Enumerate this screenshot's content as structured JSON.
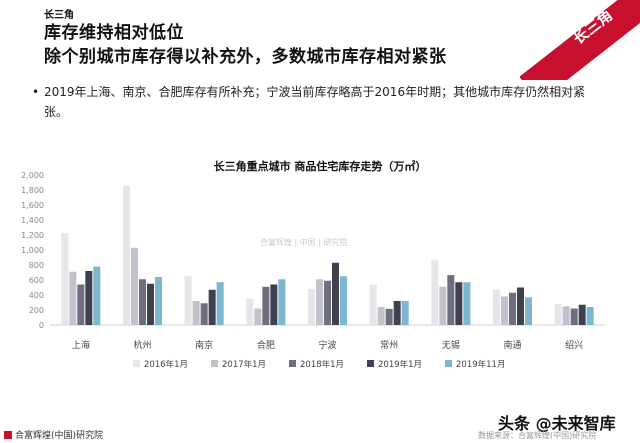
{
  "header": {
    "tag": "长三角",
    "title_line1": "库存维持相对低位",
    "title_line2": "除个别城市库存得以补充外，多数城市库存相对紧张",
    "corner_label": "长三角"
  },
  "bullet": {
    "marker": "•",
    "text": "2019年上海、南京、合肥库存有所补充；宁波当前库存略高于2016年时期；其他城市库存仍然相对紧张。"
  },
  "watermarks": {
    "center": "合富辉煌 | 中国 | 研究院",
    "brand": "头条 @未来智库"
  },
  "footer": {
    "left": "合富辉煌(中国)研究院",
    "right": "数据来源：合富辉煌(中国)研究院"
  },
  "chart_data": {
    "type": "bar",
    "title": "长三角重点城市  商品住宅库存走势（万㎡）",
    "categories": [
      "上海",
      "杭州",
      "南京",
      "合肥",
      "宁波",
      "常州",
      "无锡",
      "南通",
      "绍兴"
    ],
    "ylim": [
      0,
      2000
    ],
    "yticks": [
      "0",
      "200",
      "400",
      "600",
      "800",
      "1,000",
      "1,200",
      "1,400",
      "1,600",
      "1,800",
      "2,000"
    ],
    "grid": false,
    "legend_position": "bottom",
    "series": [
      {
        "name": "2016年1月",
        "color": "#e6e6ea",
        "values": [
          1225,
          1860,
          650,
          350,
          480,
          540,
          870,
          470,
          280
        ]
      },
      {
        "name": "2017年1月",
        "color": "#c2c2cc",
        "values": [
          710,
          1030,
          320,
          220,
          610,
          240,
          510,
          380,
          250
        ]
      },
      {
        "name": "2018年1月",
        "color": "#6e6e7e",
        "values": [
          540,
          610,
          290,
          510,
          590,
          215,
          665,
          430,
          220
        ]
      },
      {
        "name": "2019年1月",
        "color": "#3d4150",
        "values": [
          720,
          550,
          470,
          540,
          830,
          320,
          570,
          500,
          270
        ]
      },
      {
        "name": "2019年11月",
        "color": "#7db7cf",
        "values": [
          780,
          640,
          570,
          610,
          650,
          320,
          570,
          370,
          240
        ]
      }
    ]
  }
}
